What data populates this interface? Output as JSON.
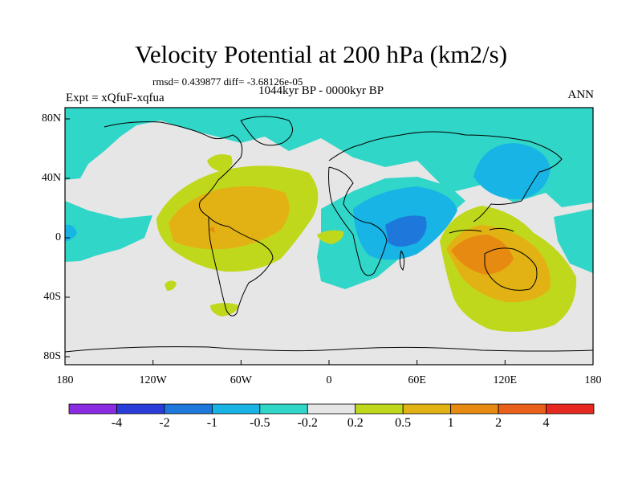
{
  "title": "Velocity Potential at 200 hPa (km2/s)",
  "stats_line": "rmsd= 0.439877 diff= -3.68126e-05",
  "period": "1044kyr BP - 0000kyr BP",
  "experiment": "Expt = xQfuF-xqfua",
  "season": "ANN",
  "lat_ticks": [
    "80N",
    "40N",
    "0",
    "40S",
    "80S"
  ],
  "lon_ticks": [
    "180",
    "120W",
    "60W",
    "0",
    "60E",
    "120E",
    "180"
  ],
  "colorbar": {
    "colors": [
      "#8a2be2",
      "#2a3cd8",
      "#1e78dc",
      "#18b4e6",
      "#30d6c8",
      "#e6e6e6",
      "#c0d81c",
      "#e2b214",
      "#e68a12",
      "#e8601a",
      "#e6281e"
    ],
    "labels": [
      "-4",
      "-2",
      "-1",
      "-0.5",
      "-0.2",
      "0.2",
      "0.5",
      "1",
      "2",
      "4"
    ]
  },
  "colors": {
    "background_field": "#e6e6e6",
    "coast": "#000000"
  }
}
